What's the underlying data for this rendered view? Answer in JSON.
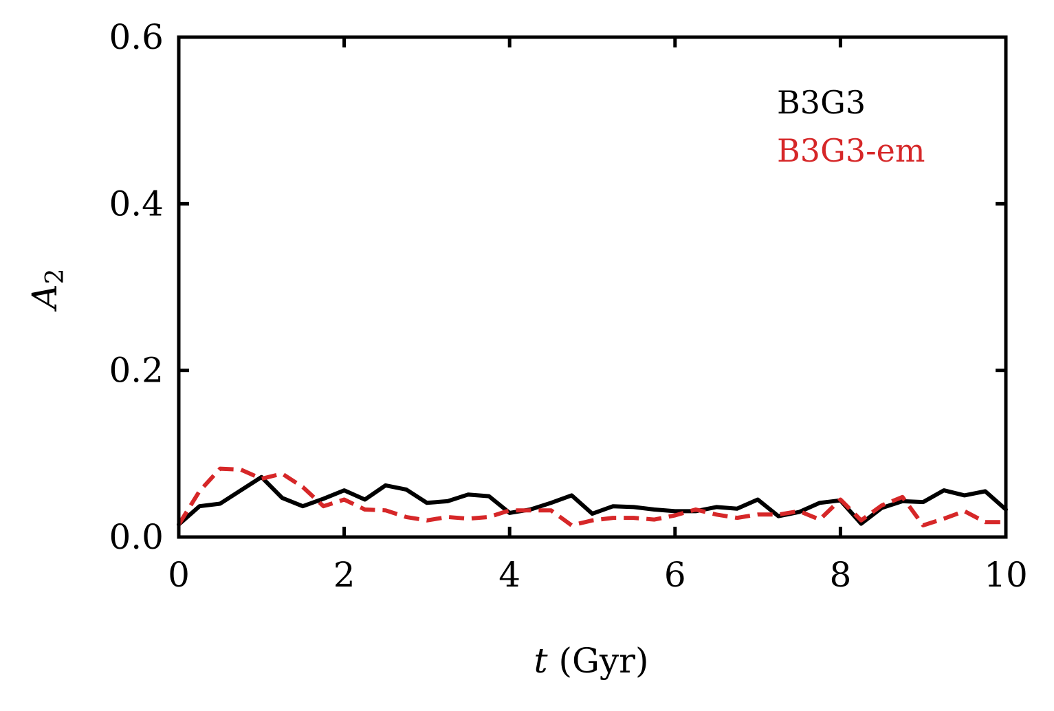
{
  "chart_data": {
    "type": "line",
    "xlabel": {
      "italic": "t",
      "rest": " (Gyr)"
    },
    "ylabel": {
      "main": "A",
      "sub": "2"
    },
    "xlim": [
      0,
      10
    ],
    "ylim": [
      0,
      0.6
    ],
    "xticks": [
      0,
      2,
      4,
      6,
      8,
      10
    ],
    "yticks": [
      0.0,
      0.2,
      0.4,
      0.6
    ],
    "xtick_labels": [
      "0",
      "2",
      "4",
      "6",
      "8",
      "10"
    ],
    "ytick_labels": [
      "0.0",
      "0.2",
      "0.4",
      "0.6"
    ],
    "legend_placement": "top-right",
    "grid": false,
    "series": [
      {
        "name": "B3G3",
        "color": "#000000",
        "style": "solid",
        "x": [
          0,
          0.25,
          0.5,
          0.75,
          1.0,
          1.25,
          1.5,
          1.75,
          2.0,
          2.25,
          2.5,
          2.75,
          3.0,
          3.25,
          3.5,
          3.75,
          4.0,
          4.25,
          4.5,
          4.75,
          5.0,
          5.25,
          5.5,
          5.75,
          6.0,
          6.25,
          6.5,
          6.75,
          7.0,
          7.25,
          7.5,
          7.75,
          8.0,
          8.25,
          8.5,
          8.75,
          9.0,
          9.25,
          9.5,
          9.75,
          10.0
        ],
        "y": [
          0.015,
          0.037,
          0.04,
          0.056,
          0.072,
          0.047,
          0.037,
          0.046,
          0.056,
          0.045,
          0.062,
          0.057,
          0.041,
          0.043,
          0.051,
          0.049,
          0.029,
          0.033,
          0.041,
          0.05,
          0.028,
          0.037,
          0.036,
          0.033,
          0.031,
          0.031,
          0.036,
          0.034,
          0.045,
          0.025,
          0.03,
          0.041,
          0.044,
          0.016,
          0.035,
          0.043,
          0.042,
          0.056,
          0.05,
          0.055,
          0.033
        ]
      },
      {
        "name": "B3G3-em",
        "color": "#d62728",
        "style": "dashed",
        "x": [
          0,
          0.25,
          0.5,
          0.75,
          1.0,
          1.25,
          1.5,
          1.75,
          2.0,
          2.25,
          2.5,
          2.75,
          3.0,
          3.25,
          3.5,
          3.75,
          4.0,
          4.25,
          4.5,
          4.75,
          5.0,
          5.25,
          5.5,
          5.75,
          6.0,
          6.25,
          6.5,
          6.75,
          7.0,
          7.25,
          7.5,
          7.75,
          8.0,
          8.25,
          8.5,
          8.75,
          9.0,
          9.25,
          9.5,
          9.75,
          10.0
        ],
        "y": [
          0.015,
          0.055,
          0.082,
          0.081,
          0.07,
          0.076,
          0.06,
          0.037,
          0.045,
          0.033,
          0.032,
          0.024,
          0.02,
          0.024,
          0.022,
          0.024,
          0.032,
          0.032,
          0.032,
          0.014,
          0.02,
          0.023,
          0.023,
          0.021,
          0.026,
          0.033,
          0.027,
          0.023,
          0.027,
          0.027,
          0.031,
          0.021,
          0.045,
          0.02,
          0.038,
          0.048,
          0.014,
          0.022,
          0.031,
          0.018,
          0.018
        ]
      }
    ]
  }
}
